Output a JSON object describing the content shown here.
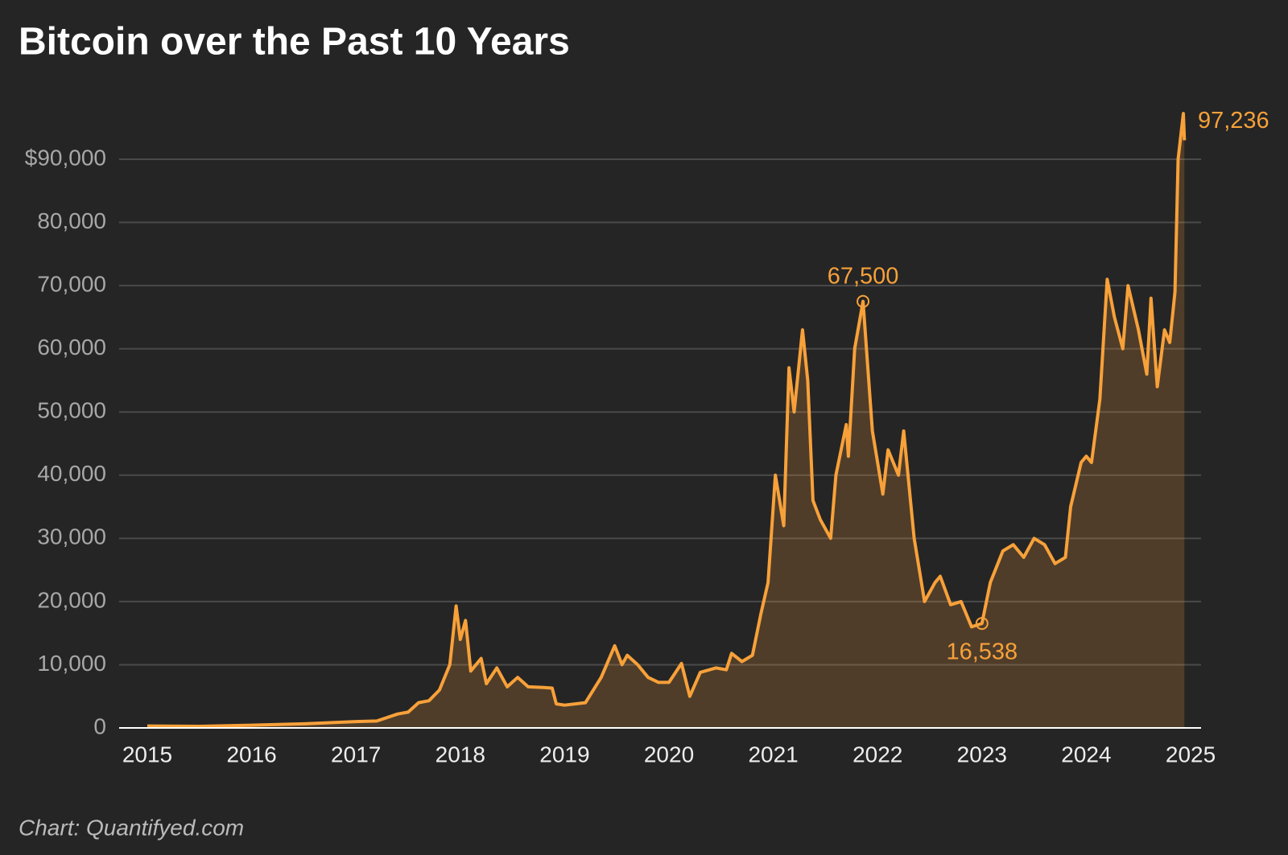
{
  "chart_data": {
    "type": "area",
    "title": "Bitcoin over the Past 10 Years",
    "source": "Chart: Quantifyed.com",
    "color": "#f8a13a",
    "grid": true,
    "xlim": [
      2014.73,
      2025.1
    ],
    "xticks": [
      2015,
      2016,
      2017,
      2018,
      2019,
      2020,
      2021,
      2022,
      2023,
      2024,
      2025
    ],
    "ylim": [
      0,
      100000
    ],
    "yticks": [
      0,
      {
        "value": 10000,
        "label": "10,000"
      },
      {
        "value": 20000,
        "label": "20,000"
      },
      {
        "value": 30000,
        "label": "30,000"
      },
      {
        "value": 40000,
        "label": "40,000"
      },
      {
        "value": 50000,
        "label": "50,000"
      },
      {
        "value": 60000,
        "label": "60,000"
      },
      {
        "value": 70000,
        "label": "70,000"
      },
      {
        "value": 80000,
        "label": "80,000"
      },
      {
        "value": 90000,
        "label": "$90,000"
      }
    ],
    "x": [
      2015.0,
      2015.5,
      2016.0,
      2016.5,
      2017.0,
      2017.2,
      2017.4,
      2017.5,
      2017.6,
      2017.7,
      2017.8,
      2017.9,
      2017.96,
      2018.0,
      2018.05,
      2018.1,
      2018.2,
      2018.25,
      2018.35,
      2018.45,
      2018.55,
      2018.65,
      2018.8,
      2018.88,
      2018.92,
      2019.0,
      2019.2,
      2019.35,
      2019.48,
      2019.55,
      2019.6,
      2019.7,
      2019.8,
      2019.9,
      2020.0,
      2020.12,
      2020.2,
      2020.3,
      2020.45,
      2020.55,
      2020.6,
      2020.7,
      2020.8,
      2020.88,
      2020.95,
      2021.02,
      2021.1,
      2021.15,
      2021.2,
      2021.28,
      2021.33,
      2021.38,
      2021.45,
      2021.55,
      2021.6,
      2021.7,
      2021.72,
      2021.78,
      2021.86,
      2021.95,
      2022.05,
      2022.1,
      2022.2,
      2022.25,
      2022.35,
      2022.45,
      2022.55,
      2022.6,
      2022.7,
      2022.8,
      2022.9,
      2023.0,
      2023.08,
      2023.2,
      2023.3,
      2023.4,
      2023.5,
      2023.6,
      2023.7,
      2023.8,
      2023.85,
      2023.95,
      2024.0,
      2024.05,
      2024.13,
      2024.2,
      2024.27,
      2024.35,
      2024.4,
      2024.5,
      2024.58,
      2024.62,
      2024.68,
      2024.75,
      2024.8,
      2024.85,
      2024.88,
      2024.93,
      2024.94
    ],
    "values": [
      300,
      260,
      430,
      650,
      1000,
      1100,
      2200,
      2500,
      4000,
      4300,
      6000,
      10000,
      19300,
      14000,
      17000,
      9000,
      11000,
      7000,
      9500,
      6500,
      8000,
      6500,
      6400,
      6300,
      3800,
      3600,
      4000,
      8000,
      13000,
      10000,
      11500,
      10000,
      8000,
      7200,
      7200,
      10200,
      5000,
      8800,
      9500,
      9200,
      11800,
      10500,
      11500,
      18000,
      23000,
      40000,
      32000,
      57000,
      50000,
      63000,
      55000,
      36000,
      33000,
      30000,
      40000,
      48000,
      43000,
      60000,
      67500,
      47000,
      37000,
      44000,
      40000,
      47000,
      30000,
      20000,
      23000,
      24000,
      19500,
      20000,
      16000,
      16538,
      23000,
      28000,
      29000,
      27000,
      30000,
      29000,
      26000,
      27000,
      35000,
      42000,
      43000,
      42000,
      52000,
      71000,
      65000,
      60000,
      70000,
      63000,
      56000,
      68000,
      54000,
      63000,
      61000,
      69000,
      90000,
      97236,
      93000
    ],
    "annotations": [
      {
        "x": 2021.86,
        "value": 67500,
        "label": "67,500"
      },
      {
        "x": 2023.0,
        "value": 16538,
        "label": "16,538"
      },
      {
        "x": 2024.93,
        "value": 97236,
        "label": "97,236"
      }
    ]
  }
}
